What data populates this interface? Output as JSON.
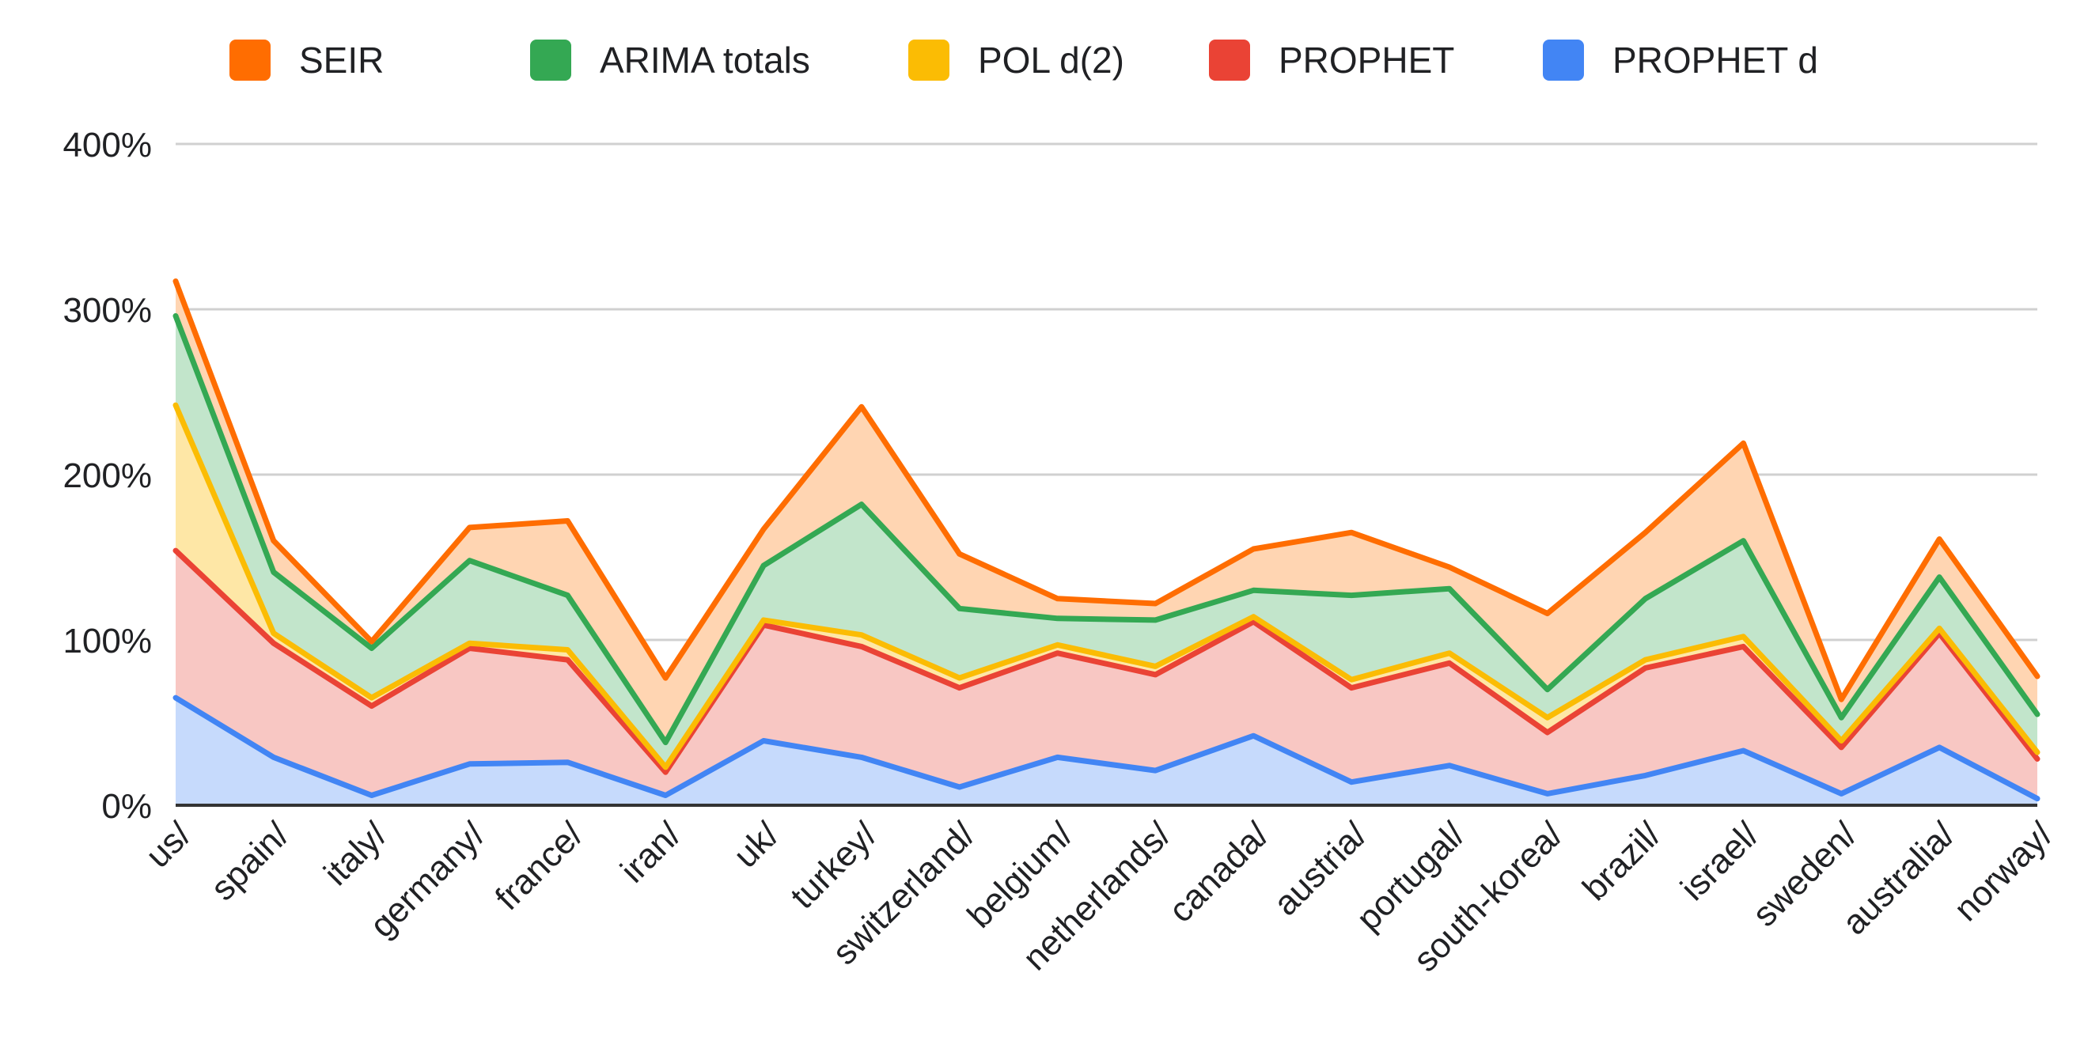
{
  "chart_data": {
    "type": "area",
    "stacked": true,
    "title": "",
    "xlabel": "",
    "ylabel": "",
    "ylim": [
      0,
      400
    ],
    "y_ticks": [
      {
        "value": 0,
        "label": "0%"
      },
      {
        "value": 100,
        "label": "100%"
      },
      {
        "value": 200,
        "label": "200%"
      },
      {
        "value": 300,
        "label": "300%"
      },
      {
        "value": 400,
        "label": "400%"
      }
    ],
    "grid": true,
    "legend_position": "top",
    "categories": [
      "us/",
      "spain/",
      "italy/",
      "germany/",
      "france/",
      "iran/",
      "uk/",
      "turkey/",
      "switzerland/",
      "belgium/",
      "netherlands/",
      "canada/",
      "austria/",
      "portugal/",
      "south-korea/",
      "brazil/",
      "israel/",
      "sweden/",
      "australia/",
      "norway/"
    ],
    "series": [
      {
        "name": "PROPHET d",
        "color": "#4285f4",
        "fill": "#c6dafc",
        "values": [
          65,
          29,
          6,
          25,
          26,
          6,
          39,
          29,
          11,
          29,
          21,
          42,
          14,
          24,
          7,
          18,
          33,
          7,
          35,
          4
        ]
      },
      {
        "name": "PROPHET",
        "color": "#ea4335",
        "fill": "#f8c7c3",
        "values": [
          89,
          69,
          54,
          70,
          62,
          14,
          70,
          67,
          60,
          63,
          58,
          69,
          57,
          62,
          37,
          65,
          63,
          28,
          69,
          24
        ]
      },
      {
        "name": "POL d(2)",
        "color": "#fbbc04",
        "fill": "#fee7a6",
        "values": [
          88,
          6,
          5,
          3,
          6,
          3,
          3,
          7,
          6,
          5,
          5,
          3,
          5,
          6,
          9,
          5,
          6,
          4,
          3,
          4
        ]
      },
      {
        "name": "ARIMA totals",
        "color": "#34a853",
        "fill": "#c2e5cb",
        "values": [
          54,
          37,
          30,
          50,
          33,
          15,
          33,
          79,
          42,
          16,
          28,
          16,
          51,
          39,
          17,
          37,
          58,
          14,
          31,
          23
        ]
      },
      {
        "name": "SEIR",
        "color": "#ff6d01",
        "fill": "#ffd5b2",
        "values": [
          21,
          19,
          4,
          20,
          45,
          39,
          22,
          59,
          33,
          12,
          10,
          25,
          38,
          13,
          46,
          40,
          59,
          11,
          23,
          23
        ]
      }
    ]
  },
  "legend": [
    {
      "label": "SEIR",
      "color": "#ff6d01"
    },
    {
      "label": "ARIMA totals",
      "color": "#34a853"
    },
    {
      "label": "POL d(2)",
      "color": "#fbbc04"
    },
    {
      "label": "PROPHET",
      "color": "#ea4335"
    },
    {
      "label": "PROPHET d",
      "color": "#4285f4"
    }
  ]
}
